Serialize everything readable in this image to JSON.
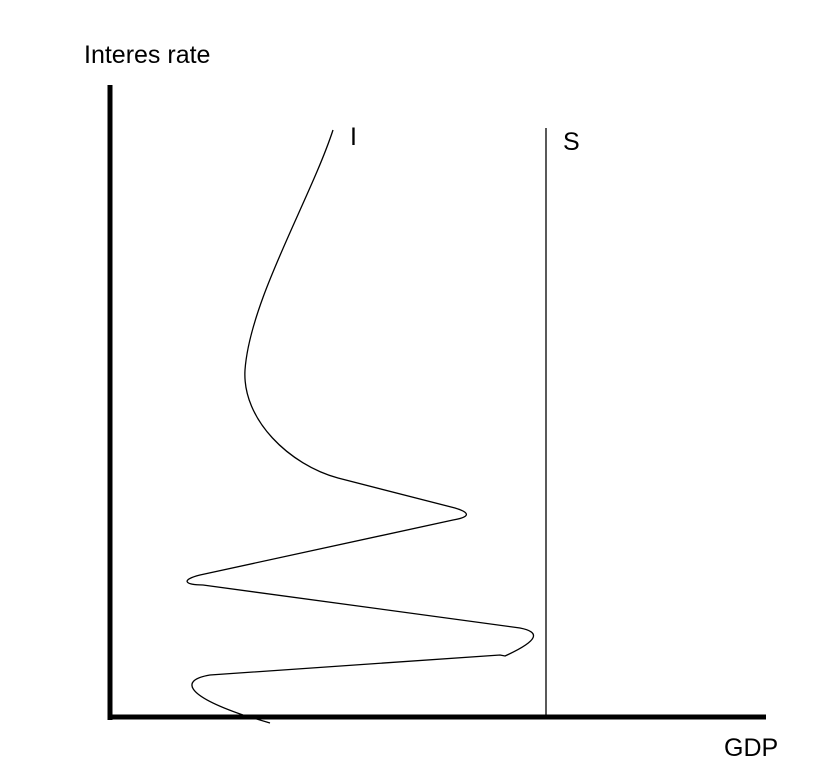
{
  "diagram": {
    "y_axis_label": "Interes rate",
    "x_axis_label": "GDP",
    "curve_i_label": "I",
    "curve_s_label": "S",
    "line_color": "#000000"
  }
}
